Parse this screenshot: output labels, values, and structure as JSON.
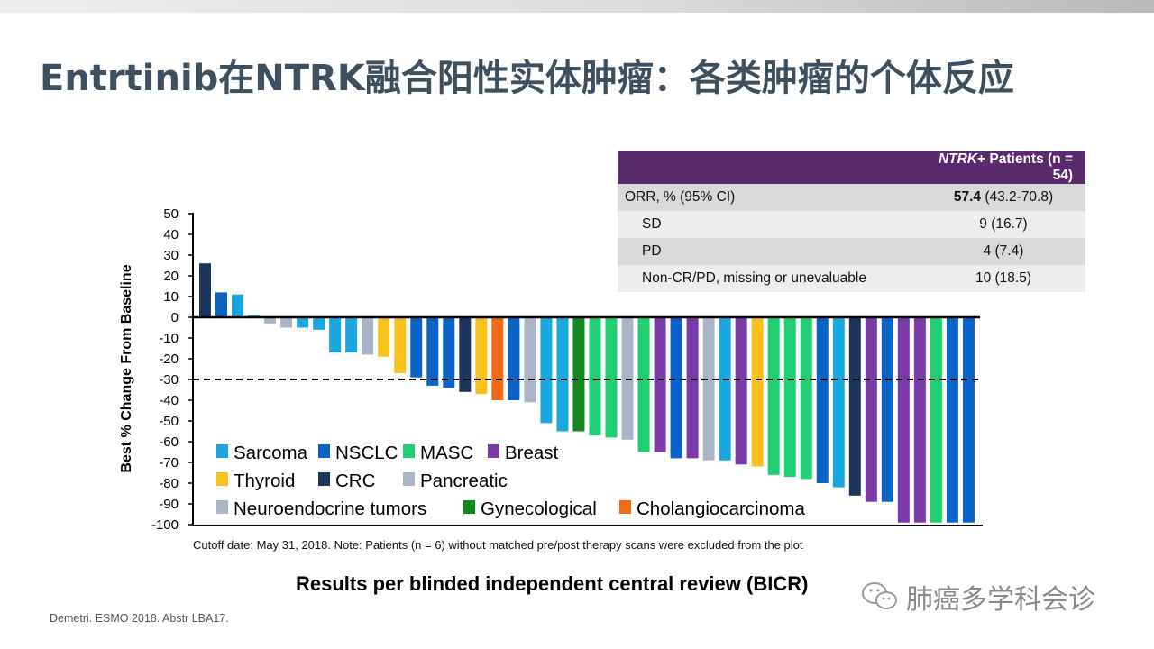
{
  "page": {
    "title": "Entrtinib在NTRK融合阳性实体肿瘤：各类肿瘤的个体反应",
    "citation": "Demetri. ESMO 2018. Abstr LBA17.",
    "watermark": "肺癌多学科会诊",
    "cutoff_note": "Cutoff date: May 31, 2018. Note: Patients (n = 6) without matched pre/post therapy scans were excluded from the plot",
    "results_caption": "Results per blinded independent central review (BICR)"
  },
  "table": {
    "header": {
      "label": "",
      "value_italic": "NTRK",
      "value_rest": "+ Patients (n = 54)"
    },
    "rows": [
      {
        "label": "ORR, % (95% CI)",
        "value_bold": "57.4",
        "value_rest": " (43.2-70.8)"
      },
      {
        "label": "SD",
        "value_bold": "",
        "value_rest": "9 (16.7)"
      },
      {
        "label": "PD",
        "value_bold": "",
        "value_rest": "4 (7.4)"
      },
      {
        "label": "Non-CR/PD, missing or unevaluable",
        "value_bold": "",
        "value_rest": "10 (18.5)"
      }
    ]
  },
  "chart_data": {
    "type": "bar",
    "title": "",
    "xlabel": "",
    "ylabel": "Best % Change  From Baseline",
    "ylim": [
      -100,
      50
    ],
    "yticks": [
      50,
      40,
      30,
      20,
      10,
      0,
      -10,
      -20,
      -30,
      -40,
      -50,
      -60,
      -70,
      -80,
      -90,
      -100
    ],
    "reference_line": -30,
    "colors": {
      "Sarcoma": "#1aa7e0",
      "NSCLC": "#0b62c7",
      "MASC": "#1fcf72",
      "Breast": "#7a3aa8",
      "Thyroid": "#f9c11b",
      "CRC": "#1c355e",
      "Pancreatic": "#aab4c8",
      "Neuroendocrine tumors": "#aab4c8",
      "Gynecological": "#118a1d",
      "Cholangiocarcinoma": "#f26a16"
    },
    "legend": [
      [
        "Sarcoma",
        "NSCLC",
        "MASC",
        "Breast"
      ],
      [
        "Thyroid",
        "CRC",
        "Pancreatic"
      ],
      [
        "Neuroendocrine tumors",
        "Gynecological",
        "Cholangiocarcinoma"
      ]
    ],
    "bars": [
      {
        "type": "CRC",
        "value": 26
      },
      {
        "type": "NSCLC",
        "value": 12
      },
      {
        "type": "Sarcoma",
        "value": 11
      },
      {
        "type": "Sarcoma",
        "value": 1
      },
      {
        "type": "Neuroendocrine tumors",
        "value": -3
      },
      {
        "type": "Pancreatic",
        "value": -5
      },
      {
        "type": "Sarcoma",
        "value": -5
      },
      {
        "type": "Sarcoma",
        "value": -6
      },
      {
        "type": "Sarcoma",
        "value": -17
      },
      {
        "type": "Sarcoma",
        "value": -17
      },
      {
        "type": "Pancreatic",
        "value": -18
      },
      {
        "type": "Thyroid",
        "value": -19
      },
      {
        "type": "Thyroid",
        "value": -27
      },
      {
        "type": "NSCLC",
        "value": -29
      },
      {
        "type": "NSCLC",
        "value": -33
      },
      {
        "type": "NSCLC",
        "value": -34
      },
      {
        "type": "CRC",
        "value": -36
      },
      {
        "type": "Thyroid",
        "value": -37
      },
      {
        "type": "Cholangiocarcinoma",
        "value": -40
      },
      {
        "type": "NSCLC",
        "value": -40
      },
      {
        "type": "Pancreatic",
        "value": -41
      },
      {
        "type": "Sarcoma",
        "value": -51
      },
      {
        "type": "Sarcoma",
        "value": -55
      },
      {
        "type": "Gynecological",
        "value": -55
      },
      {
        "type": "MASC",
        "value": -57
      },
      {
        "type": "MASC",
        "value": -58
      },
      {
        "type": "Neuroendocrine tumors",
        "value": -59
      },
      {
        "type": "MASC",
        "value": -65
      },
      {
        "type": "Breast",
        "value": -65
      },
      {
        "type": "NSCLC",
        "value": -68
      },
      {
        "type": "Breast",
        "value": -68
      },
      {
        "type": "Pancreatic",
        "value": -69
      },
      {
        "type": "Sarcoma",
        "value": -69
      },
      {
        "type": "Breast",
        "value": -71
      },
      {
        "type": "Thyroid",
        "value": -72
      },
      {
        "type": "MASC",
        "value": -76
      },
      {
        "type": "MASC",
        "value": -77
      },
      {
        "type": "MASC",
        "value": -78
      },
      {
        "type": "NSCLC",
        "value": -80
      },
      {
        "type": "Sarcoma",
        "value": -82
      },
      {
        "type": "CRC",
        "value": -86
      },
      {
        "type": "Breast",
        "value": -89
      },
      {
        "type": "NSCLC",
        "value": -89
      },
      {
        "type": "Breast",
        "value": -99
      },
      {
        "type": "Breast",
        "value": -99
      },
      {
        "type": "MASC",
        "value": -99
      },
      {
        "type": "NSCLC",
        "value": -99
      },
      {
        "type": "NSCLC",
        "value": -99
      }
    ]
  }
}
